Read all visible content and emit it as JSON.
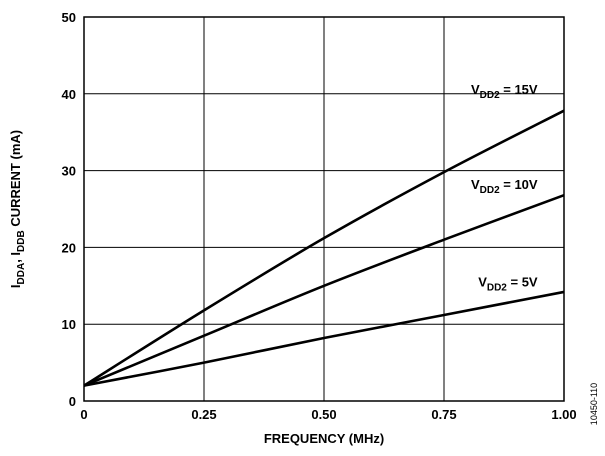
{
  "chart_data": {
    "type": "line",
    "xlabel": "FREQUENCY (MHz)",
    "ylabel": {
      "parts": [
        {
          "text": "I",
          "sub": false
        },
        {
          "text": "DDA",
          "sub": true
        },
        {
          "text": ", I",
          "sub": false
        },
        {
          "text": "DDB",
          "sub": true
        },
        {
          "text": " CURRENT (mA)",
          "sub": false
        }
      ]
    },
    "xlim": [
      0,
      1.0
    ],
    "ylim": [
      0,
      50
    ],
    "xticks": [
      0,
      0.25,
      0.5,
      0.75,
      1.0
    ],
    "xtick_labels": [
      "0",
      "0.25",
      "0.50",
      "0.75",
      "1.00"
    ],
    "yticks": [
      0,
      10,
      20,
      30,
      40,
      50
    ],
    "ytick_labels": [
      "0",
      "10",
      "20",
      "30",
      "40",
      "50"
    ],
    "grid": true,
    "series": [
      {
        "label": {
          "base": "V",
          "sub": "DD2",
          "rest": " = 15V"
        },
        "label_at": [
          0.945,
          40.0
        ],
        "x": [
          0,
          0.25,
          0.5,
          0.75,
          1.0
        ],
        "y": [
          2.0,
          11.8,
          21.2,
          29.8,
          37.8
        ]
      },
      {
        "label": {
          "base": "V",
          "sub": "DD2",
          "rest": " = 10V"
        },
        "label_at": [
          0.945,
          27.6
        ],
        "x": [
          0,
          0.25,
          0.5,
          0.75,
          1.0
        ],
        "y": [
          2.0,
          8.5,
          15.0,
          21.0,
          26.8
        ]
      },
      {
        "label": {
          "base": "V",
          "sub": "DD2",
          "rest": " = 5V"
        },
        "label_at": [
          0.945,
          14.9
        ],
        "x": [
          0,
          0.25,
          0.5,
          0.75,
          1.0
        ],
        "y": [
          2.0,
          5.0,
          8.2,
          11.2,
          14.2
        ]
      }
    ]
  },
  "figure_id": "10450-110"
}
